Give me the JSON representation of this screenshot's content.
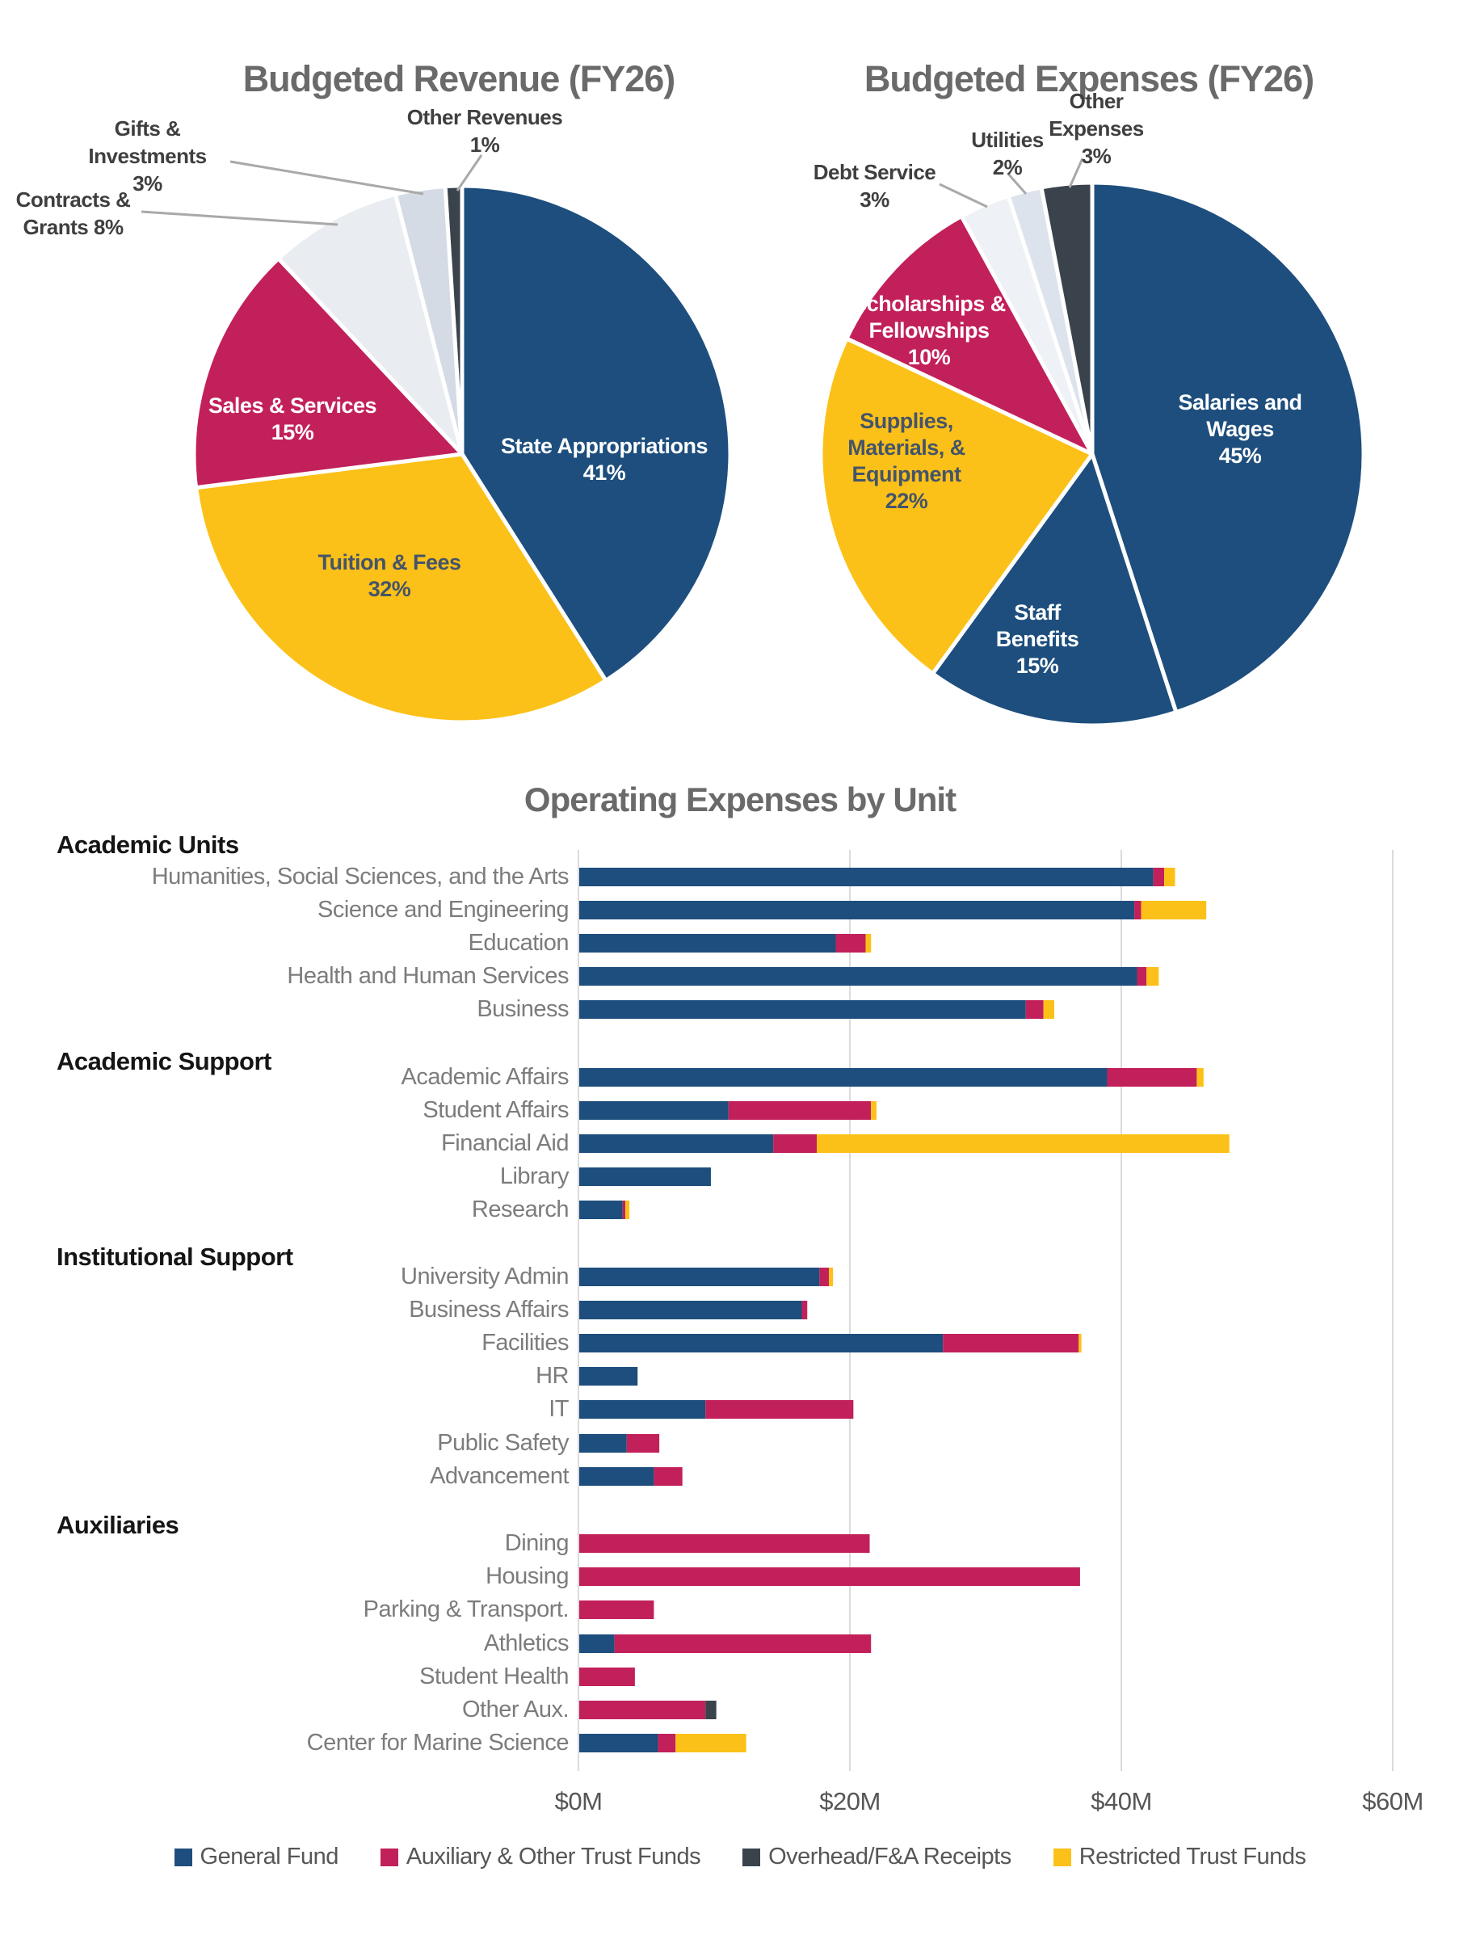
{
  "chart_data": [
    {
      "type": "pie",
      "title": "Budgeted Revenue (FY26)",
      "legend_position": "none",
      "slices": [
        {
          "label": "State Appropriations",
          "pct": "41%",
          "value": 41,
          "color": "#1d4e7d",
          "label_style": "inside-light"
        },
        {
          "label": "Tuition & Fees",
          "pct": "32%",
          "value": 32,
          "color": "#fcc118",
          "label_style": "inside-dark"
        },
        {
          "label": "Sales & Services",
          "pct": "15%",
          "value": 15,
          "color": "#c2205a",
          "label_style": "inside-light"
        },
        {
          "label": "Contracts & Grants",
          "pct": "8%",
          "value": 8,
          "color": "#e9edf2",
          "label_style": "outside"
        },
        {
          "label": "Gifts & Investments",
          "pct": "3%",
          "value": 3,
          "color": "#d4dbe5",
          "label_style": "outside"
        },
        {
          "label": "Other Revenues",
          "pct": "1%",
          "value": 1,
          "color": "#3a434b",
          "label_style": "outside"
        }
      ]
    },
    {
      "type": "pie",
      "title": "Budgeted Expenses (FY26)",
      "legend_position": "none",
      "slices": [
        {
          "label": "Salaries and Wages",
          "pct": "45%",
          "value": 45,
          "color": "#1d4e7d",
          "label_style": "inside-light"
        },
        {
          "label": "Staff Benefits",
          "pct": "15%",
          "value": 15,
          "color": "#1d4e7d",
          "label_style": "inside-light"
        },
        {
          "label": "Supplies, Materials, & Equipment",
          "pct": "22%",
          "value": 22,
          "color": "#fcc118",
          "label_style": "inside-dark"
        },
        {
          "label": "Scholarships & Fellowships",
          "pct": "10%",
          "value": 10,
          "color": "#c2205a",
          "label_style": "inside-light"
        },
        {
          "label": "Debt Service",
          "pct": "3%",
          "value": 3,
          "color": "#eef1f5",
          "label_style": "outside"
        },
        {
          "label": "Utilities",
          "pct": "2%",
          "value": 2,
          "color": "#dde3ec",
          "label_style": "outside"
        },
        {
          "label": "Other Expenses",
          "pct": "3%",
          "value": 3,
          "color": "#3a434b",
          "label_style": "outside"
        }
      ]
    },
    {
      "type": "bar",
      "orientation": "horizontal",
      "stacked": true,
      "title": "Operating Expenses by Unit",
      "value_unit": "$M",
      "xticks": [
        "$0M",
        "$20M",
        "$40M",
        "$60M"
      ],
      "xtick_values": [
        0,
        20,
        40,
        60
      ],
      "xlim": [
        0,
        63
      ],
      "grid": true,
      "legend_position": "bottom",
      "series": [
        {
          "name": "General Fund",
          "color": "#1d4e7d"
        },
        {
          "name": "Auxiliary & Other Trust Funds",
          "color": "#c2205a"
        },
        {
          "name": "Overhead/F&A Receipts",
          "color": "#3a434b"
        },
        {
          "name": "Restricted Trust Funds",
          "color": "#fcc118"
        }
      ],
      "sections": [
        {
          "header": "Academic Units",
          "rows": [
            {
              "label": "Humanities, Social Sciences, and the Arts",
              "values": [
                42.3,
                0.8,
                0,
                0.8
              ]
            },
            {
              "label": "Science and Engineering",
              "values": [
                40.9,
                0.5,
                0,
                4.8
              ]
            },
            {
              "label": "Education",
              "values": [
                18.9,
                2.2,
                0,
                0.4
              ]
            },
            {
              "label": "Health and Human Services",
              "values": [
                41.1,
                0.7,
                0,
                0.9
              ]
            },
            {
              "label": "Business",
              "values": [
                32.9,
                1.3,
                0,
                0.8
              ]
            }
          ]
        },
        {
          "header": "Academic Support",
          "rows": [
            {
              "label": "Academic Affairs",
              "values": [
                38.9,
                6.6,
                0,
                0.5
              ]
            },
            {
              "label": "Student Affairs",
              "values": [
                11.0,
                10.5,
                0,
                0.4
              ]
            },
            {
              "label": "Financial Aid",
              "values": [
                14.3,
                3.2,
                0,
                30.4
              ]
            },
            {
              "label": "Library",
              "values": [
                9.7,
                0,
                0,
                0
              ]
            },
            {
              "label": "Research",
              "values": [
                3.2,
                0.2,
                0,
                0.3
              ]
            }
          ]
        },
        {
          "header": "Institutional Support",
          "rows": [
            {
              "label": "University Admin",
              "values": [
                17.7,
                0.7,
                0,
                0.3
              ]
            },
            {
              "label": "Business Affairs",
              "values": [
                16.4,
                0.4,
                0,
                0
              ]
            },
            {
              "label": "Facilities",
              "values": [
                26.8,
                10.0,
                0,
                0.2
              ]
            },
            {
              "label": "HR",
              "values": [
                4.3,
                0,
                0,
                0
              ]
            },
            {
              "label": "IT",
              "values": [
                9.3,
                10.9,
                0,
                0
              ]
            },
            {
              "label": "Public Safety",
              "values": [
                3.5,
                2.4,
                0,
                0
              ]
            },
            {
              "label": "Advancement",
              "values": [
                5.5,
                2.1,
                0,
                0
              ]
            }
          ]
        },
        {
          "header": "Auxiliaries",
          "rows": [
            {
              "label": "Dining",
              "values": [
                0,
                21.4,
                0,
                0
              ]
            },
            {
              "label": "Housing",
              "values": [
                0,
                36.9,
                0,
                0
              ]
            },
            {
              "label": "Parking & Transport.",
              "values": [
                0,
                5.5,
                0,
                0
              ]
            },
            {
              "label": "Athletics",
              "values": [
                2.6,
                18.9,
                0,
                0
              ]
            },
            {
              "label": "Student Health",
              "values": [
                0,
                4.1,
                0,
                0
              ]
            },
            {
              "label": "Other Aux.",
              "values": [
                0,
                9.3,
                0.8,
                0
              ]
            },
            {
              "label": "Center for Marine Science",
              "values": [
                5.8,
                1.3,
                0,
                5.2
              ]
            }
          ]
        }
      ]
    }
  ],
  "colors": {
    "general_fund": "#1d4e7d",
    "auxiliary_trust": "#c2205a",
    "overhead": "#3a434b",
    "restricted_trust": "#fcc118",
    "title_gray": "#6a6a6a",
    "gridline": "#d2d2d2",
    "leader_line": "#a9a9a9"
  }
}
